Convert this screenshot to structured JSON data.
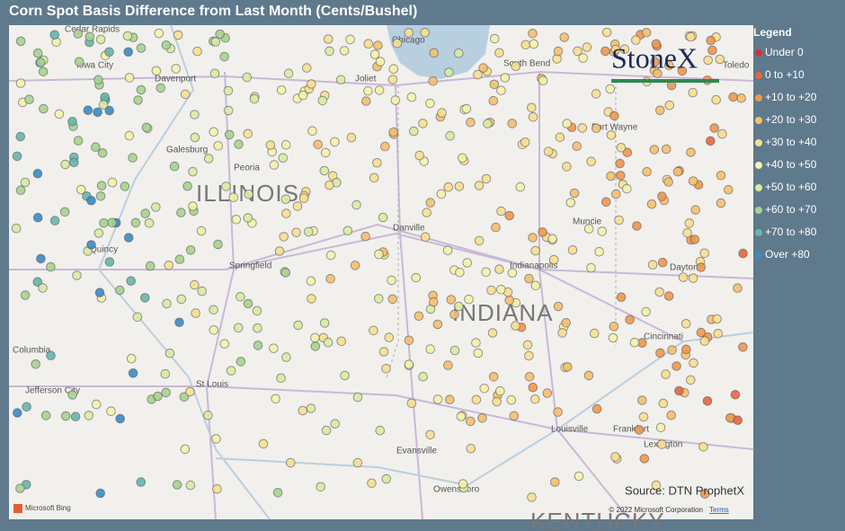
{
  "header": {
    "title": "Corn Spot Basis Difference from Last Month (Cents/Bushel)"
  },
  "legend": {
    "title": "Legend",
    "items": [
      {
        "label": "Under 0",
        "color": "#d0323a"
      },
      {
        "label": "0 to +10",
        "color": "#e8663e"
      },
      {
        "label": "+10 to +20",
        "color": "#f0974c"
      },
      {
        "label": "+20 to +30",
        "color": "#f5bf6c"
      },
      {
        "label": "+30 to +40",
        "color": "#f8df8e"
      },
      {
        "label": "+40 to +50",
        "color": "#f5f2aa"
      },
      {
        "label": "+50 to +60",
        "color": "#d8eba0"
      },
      {
        "label": "+60 to +70",
        "color": "#a6d38c"
      },
      {
        "label": "+70 to +80",
        "color": "#66b6a8"
      },
      {
        "label": "Over +80",
        "color": "#3a8bc4"
      }
    ]
  },
  "map": {
    "labels": [
      "Cedar Rapids",
      "Iowa City",
      "Davenport",
      "Joliet",
      "Chicago",
      "South Bend",
      "Toledo",
      "Fort Wayne",
      "Galesburg",
      "Peoria",
      "ILLINOIS",
      "Danville",
      "Muncie",
      "Quincy",
      "Springfield",
      "Indianapolis",
      "Dayton",
      "INDIANA",
      "Cincinnati",
      "Columbia",
      "Jefferson City",
      "St Louis",
      "Louisville",
      "Frankfort",
      "Lexington",
      "Evansville",
      "Owensboro",
      "KENTUCKY"
    ],
    "logo": "StoneX",
    "source": "Source: DTN ProphetX",
    "copyright": "© 2022 Microsoft Corporation",
    "terms": "Terms",
    "bing": "Microsoft Bing"
  }
}
